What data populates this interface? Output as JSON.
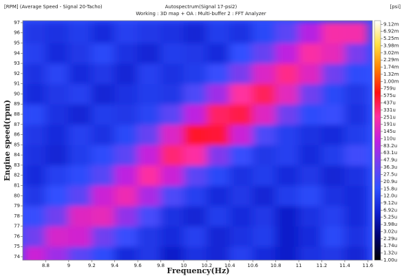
{
  "chart_data": {
    "type": "heatmap",
    "title": "Autospectrum(Signal 17-psi2)",
    "subtitle": "Working : 3D map + OA : Multi-buffer 2 : FFT Analyzer",
    "y_unit_label": "[RPM] (Average Speed - Signal 20-Tacho)",
    "z_unit_label": "[psi]",
    "xlabel": "Frequency(Hz)",
    "ylabel": "Engine speed(rpm)",
    "x": [
      8.7,
      8.9,
      9.1,
      9.3,
      9.5,
      9.7,
      9.9,
      10.1,
      10.3,
      10.5,
      10.7,
      10.9,
      11.1,
      11.3,
      11.5
    ],
    "y": [
      74,
      76,
      78,
      80,
      82,
      84,
      86,
      88,
      90,
      92,
      94,
      96
    ],
    "z": [
      [
        0.00012,
        7e-05,
        3e-05,
        1.5e-05,
        8e-06,
        1e-05,
        6e-06,
        9e-06,
        7e-06,
        1.2e-05,
        8e-06,
        6e-06,
        9e-06,
        1e-05,
        7e-06
      ],
      [
        4e-05,
        0.00014,
        0.00013,
        4e-05,
        1.8e-05,
        1e-05,
        8e-06,
        1.2e-05,
        7e-06,
        9e-06,
        1.1e-05,
        6e-06,
        8e-06,
        1.4e-05,
        9e-06
      ],
      [
        1.8e-05,
        4e-05,
        0.00016,
        0.00018,
        6e-05,
        2.2e-05,
        9e-06,
        7e-06,
        1.1e-05,
        8e-06,
        1e-05,
        6e-06,
        9e-06,
        1.2e-05,
        8e-06
      ],
      [
        1e-05,
        1.6e-05,
        3e-05,
        0.00012,
        0.0002,
        8e-05,
        2.5e-05,
        1.2e-05,
        8e-06,
        1e-05,
        7e-06,
        1.1e-05,
        1.4e-05,
        9e-06,
        8e-06
      ],
      [
        8e-06,
        1.2e-05,
        1.5e-05,
        2.8e-05,
        0.0001,
        0.00025,
        0.00012,
        3e-05,
        1.4e-05,
        9e-06,
        1.1e-05,
        8e-06,
        1e-05,
        7e-06,
        9e-06
      ],
      [
        9e-06,
        7e-06,
        1.1e-05,
        1.5e-05,
        3e-05,
        0.00011,
        0.00034,
        0.00025,
        5e-05,
        1.8e-05,
        1e-05,
        1.2e-05,
        8e-06,
        1.1e-05,
        2e-05
      ],
      [
        1e-05,
        8e-06,
        1.2e-05,
        9e-06,
        1.4e-05,
        3.5e-05,
        0.00015,
        0.00055,
        0.0005,
        0.00012,
        2.5e-05,
        1.2e-05,
        9e-06,
        8e-06,
        1.1e-05
      ],
      [
        1.4e-05,
        9e-06,
        7e-06,
        1.1e-05,
        1e-05,
        1.3e-05,
        3e-05,
        0.0001,
        0.00038,
        0.00045,
        0.00016,
        4e-05,
        1.5e-05,
        1.8e-05,
        9e-06
      ],
      [
        8e-06,
        1e-05,
        1.2e-05,
        7e-06,
        9e-06,
        1.1e-05,
        1e-05,
        2.5e-05,
        7e-05,
        0.00026,
        0.0004,
        0.00017,
        4e-05,
        1.4e-05,
        1e-05
      ],
      [
        9e-06,
        1.3e-05,
        8e-06,
        1e-05,
        7e-06,
        1.2e-05,
        9e-06,
        1.1e-05,
        1.8e-05,
        4.5e-05,
        0.00015,
        0.0003,
        0.00016,
        4e-05,
        1.5e-05
      ],
      [
        1.2e-05,
        8e-06,
        1e-05,
        1.4e-05,
        9e-06,
        7e-06,
        1.1e-05,
        1e-05,
        8e-06,
        1.6e-05,
        3.5e-05,
        0.0001,
        0.00024,
        0.00018,
        4.5e-05
      ],
      [
        1e-05,
        9e-06,
        1.1e-05,
        8e-06,
        1.2e-05,
        1e-05,
        9e-06,
        7e-06,
        1.1e-05,
        9e-06,
        1.4e-05,
        3e-05,
        9e-05,
        0.00023,
        0.00022
      ]
    ],
    "xlim": [
      8.6,
      11.64
    ],
    "ylim": [
      73.66,
      97.2
    ],
    "xticks": [
      8.8,
      9,
      9.2,
      9.4,
      9.6,
      9.8,
      10,
      10.2,
      10.4,
      10.6,
      10.8,
      11,
      11.2,
      11.4,
      11.6
    ],
    "yticks": [
      74,
      75,
      76,
      77,
      78,
      79,
      80,
      81,
      82,
      83,
      84,
      85,
      86,
      87,
      88,
      89,
      90,
      91,
      92,
      93,
      94,
      95,
      96,
      97
    ],
    "zscale": "log",
    "zlim": [
      1e-06,
      0.0105
    ],
    "zticks": [
      {
        "value": 0.00912,
        "label": "9.12m"
      },
      {
        "value": 0.00692,
        "label": "6.92m"
      },
      {
        "value": 0.00525,
        "label": "5.25m"
      },
      {
        "value": 0.00398,
        "label": "3.98m"
      },
      {
        "value": 0.00302,
        "label": "3.02m"
      },
      {
        "value": 0.00229,
        "label": "2.29m"
      },
      {
        "value": 0.00174,
        "label": "1.74m"
      },
      {
        "value": 0.00132,
        "label": "1.32m"
      },
      {
        "value": 0.001,
        "label": "1.00m"
      },
      {
        "value": 0.000759,
        "label": "759u"
      },
      {
        "value": 0.000575,
        "label": "575u"
      },
      {
        "value": 0.000437,
        "label": "437u"
      },
      {
        "value": 0.000331,
        "label": "331u"
      },
      {
        "value": 0.000251,
        "label": "251u"
      },
      {
        "value": 0.000191,
        "label": "191u"
      },
      {
        "value": 0.000145,
        "label": "145u"
      },
      {
        "value": 0.00011,
        "label": "110u"
      },
      {
        "value": 8.32e-05,
        "label": "83.2u"
      },
      {
        "value": 6.31e-05,
        "label": "63.1u"
      },
      {
        "value": 4.79e-05,
        "label": "47.9u"
      },
      {
        "value": 3.63e-05,
        "label": "36.3u"
      },
      {
        "value": 2.75e-05,
        "label": "27.5u"
      },
      {
        "value": 2.09e-05,
        "label": "20.9u"
      },
      {
        "value": 1.58e-05,
        "label": "15.8u"
      },
      {
        "value": 1.2e-05,
        "label": "12.0u"
      },
      {
        "value": 9.12e-06,
        "label": "9.12u"
      },
      {
        "value": 6.92e-06,
        "label": "6.92u"
      },
      {
        "value": 5.25e-06,
        "label": "5.25u"
      },
      {
        "value": 3.98e-06,
        "label": "3.98u"
      },
      {
        "value": 3.02e-06,
        "label": "3.02u"
      },
      {
        "value": 2.29e-06,
        "label": "2.29u"
      },
      {
        "value": 1.74e-06,
        "label": "1.74u"
      },
      {
        "value": 1.32e-06,
        "label": "1.32u"
      },
      {
        "value": 1e-06,
        "label": "1.00u"
      }
    ],
    "colorscale": [
      "#000000",
      "#000070",
      "#1020d0",
      "#3050ff",
      "#7040f0",
      "#c020e0",
      "#ff30a0",
      "#ff1010",
      "#ff8000",
      "#ffe040",
      "#ffffff"
    ]
  }
}
